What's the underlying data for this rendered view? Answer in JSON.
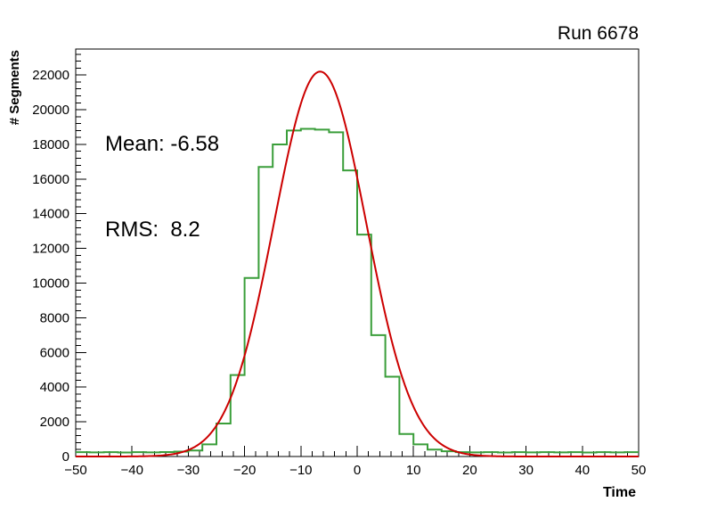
{
  "chart_data": {
    "type": "histogram_with_fit",
    "title": "Run 6678",
    "xlabel": "Time",
    "ylabel": "# Segments",
    "xlim": [
      -50,
      50
    ],
    "ylim": [
      0,
      23500
    ],
    "grid": false,
    "x_major_ticks": [
      -50,
      -40,
      -30,
      -20,
      -10,
      0,
      10,
      20,
      30,
      40,
      50
    ],
    "x_tick_labels": [
      "−50",
      "−40",
      "−30",
      "−20",
      "−10",
      "0",
      "10",
      "20",
      "30",
      "40",
      "50"
    ],
    "x_minor_step": 2,
    "y_major_ticks": [
      0,
      2000,
      4000,
      6000,
      8000,
      10000,
      12000,
      14000,
      16000,
      18000,
      20000,
      22000
    ],
    "y_tick_labels": [
      "0",
      "2000",
      "4000",
      "6000",
      "8000",
      "10000",
      "12000",
      "14000",
      "16000",
      "18000",
      "20000",
      "22000"
    ],
    "y_minor_step": 400,
    "histogram": {
      "color": "#3a9e3a",
      "line_width": 2,
      "bin_start": -50,
      "bin_width": 2.5,
      "values": [
        250,
        240,
        250,
        230,
        250,
        240,
        260,
        280,
        350,
        700,
        1900,
        4700,
        10300,
        16700,
        18000,
        18800,
        18900,
        18850,
        18700,
        16500,
        12800,
        7000,
        4600,
        1300,
        700,
        400,
        300,
        250,
        240,
        250,
        230,
        250,
        240,
        250,
        240,
        250,
        230,
        250,
        240,
        250
      ]
    },
    "fit": {
      "type": "gaussian",
      "color": "#cc0000",
      "line_width": 2,
      "amplitude": 22200,
      "mean": -6.58,
      "sigma": 8.2
    },
    "stats": {
      "mean_text": "Mean: -6.58",
      "rms_text": "RMS:  8.2"
    }
  }
}
